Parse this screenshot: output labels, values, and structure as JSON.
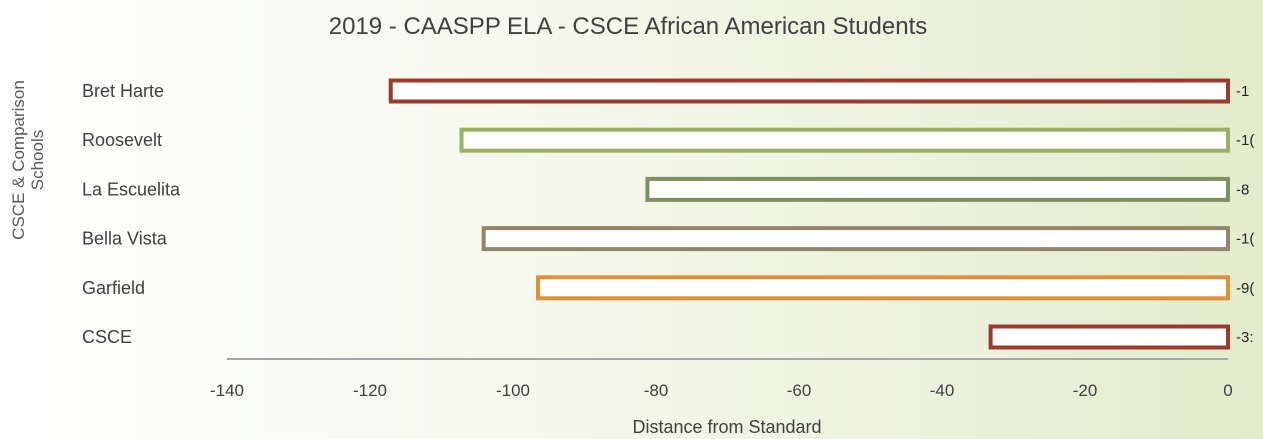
{
  "chart_data": {
    "type": "bar",
    "orientation": "horizontal",
    "title": "2019 - CAASPP ELA - CSCE African American Students",
    "xlabel": "Distance from Standard",
    "ylabel": [
      "CSCE & Comparison",
      "Schools"
    ],
    "categories": [
      "Bret Harte",
      "Roosevelt",
      "La Escuelita",
      "Bella Vista",
      "Garfield",
      "CSCE"
    ],
    "values": [
      -117.1,
      -107.2,
      -81.2,
      -104.1,
      -96.5,
      -33.2
    ],
    "data_labels": [
      "-1",
      "-1(",
      "-8",
      "-1(",
      "-9(",
      "-3:"
    ],
    "bar_colors": [
      "#9b3b30",
      "#9bb063",
      "#7e8f62",
      "#94856a",
      "#e08f3a",
      "#9b3b30"
    ],
    "xlim": [
      -140,
      0
    ],
    "xticks": [
      "-140",
      "-120",
      "-100",
      "-80",
      "-60",
      "-40",
      "-20",
      "0"
    ],
    "grid": false,
    "legend": "none"
  }
}
